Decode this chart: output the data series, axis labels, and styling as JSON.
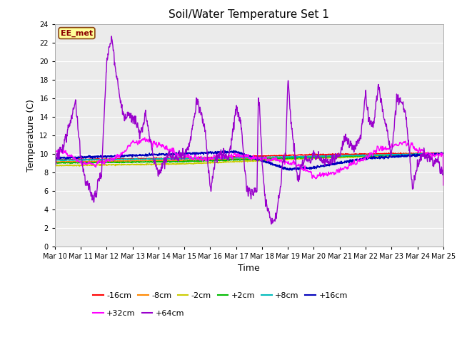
{
  "title": "Soil/Water Temperature Set 1",
  "xlabel": "Time",
  "ylabel": "Temperature (C)",
  "ylim": [
    0,
    24
  ],
  "yticks": [
    0,
    2,
    4,
    6,
    8,
    10,
    12,
    14,
    16,
    18,
    20,
    22,
    24
  ],
  "xtick_labels": [
    "Mar 10",
    "Mar 11",
    "Mar 12",
    "Mar 13",
    "Mar 14",
    "Mar 15",
    "Mar 16",
    "Mar 17",
    "Mar 18",
    "Mar 19",
    "Mar 20",
    "Mar 21",
    "Mar 22",
    "Mar 23",
    "Mar 24",
    "Mar 25"
  ],
  "fig_bg": "#ffffff",
  "plot_bg": "#ebebeb",
  "annotation_text": "EE_met",
  "annotation_bg": "#ffff99",
  "annotation_border": "#8b4513",
  "annotation_text_color": "#8b0000",
  "series": [
    {
      "label": "-16cm",
      "color": "#ff0000"
    },
    {
      "label": "-8cm",
      "color": "#ff8800"
    },
    {
      "label": "-2cm",
      "color": "#cccc00"
    },
    {
      "label": "+2cm",
      "color": "#00bb00"
    },
    {
      "label": "+8cm",
      "color": "#00bbbb"
    },
    {
      "label": "+16cm",
      "color": "#0000bb"
    },
    {
      "label": "+32cm",
      "color": "#ff00ff"
    },
    {
      "label": "+64cm",
      "color": "#9900cc"
    }
  ]
}
